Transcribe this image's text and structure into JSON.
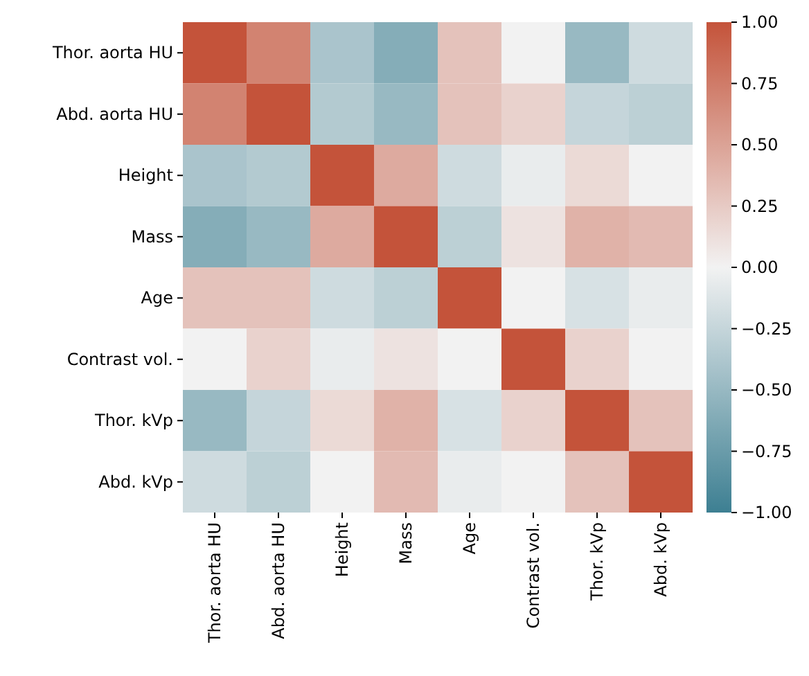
{
  "chart_data": {
    "type": "heatmap",
    "categories": [
      "Thor. aorta HU",
      "Abd. aorta HU",
      "Height",
      "Mass",
      "Age",
      "Contrast vol.",
      "Thor. kVp",
      "Abd. kVp"
    ],
    "y_categories": [
      "Thor. aorta HU",
      "Abd. aorta HU",
      "Height",
      "Mass",
      "Age",
      "Contrast vol.",
      "Thor. kVp",
      "Abd. kVp"
    ],
    "cells": [
      [
        1,
        0.7,
        -0.4,
        -0.6,
        0.3,
        0.0,
        -0.5,
        -0.2
      ],
      [
        0.7,
        1,
        -0.35,
        -0.5,
        0.3,
        0.2,
        -0.25,
        -0.3
      ],
      [
        -0.4,
        -0.35,
        1,
        0.45,
        -0.2,
        -0.05,
        0.15,
        0.0
      ],
      [
        -0.6,
        -0.5,
        0.45,
        1,
        -0.3,
        0.1,
        0.4,
        0.35
      ],
      [
        0.3,
        0.3,
        -0.2,
        -0.3,
        1,
        0.0,
        -0.15,
        -0.05
      ],
      [
        0.0,
        0.2,
        -0.05,
        0.1,
        0.0,
        1,
        0.2,
        0.0
      ],
      [
        -0.5,
        -0.25,
        0.15,
        0.4,
        -0.15,
        0.2,
        1,
        0.3
      ],
      [
        -0.2,
        -0.3,
        0.0,
        0.35,
        -0.05,
        0.0,
        0.3,
        1
      ]
    ],
    "clim": [
      -1,
      1
    ],
    "cticks": [
      {
        "value": 1,
        "label": "1.00"
      },
      {
        "value": 0.75,
        "label": "0.75"
      },
      {
        "value": 0.5,
        "label": "0.50"
      },
      {
        "value": 0.25,
        "label": "0.25"
      },
      {
        "value": 0,
        "label": "0.00"
      },
      {
        "value": -0.25,
        "label": "−0.25"
      },
      {
        "value": -0.5,
        "label": "−0.50"
      },
      {
        "value": -0.75,
        "label": "−0.75"
      },
      {
        "value": -1,
        "label": "−1.00"
      }
    ]
  }
}
